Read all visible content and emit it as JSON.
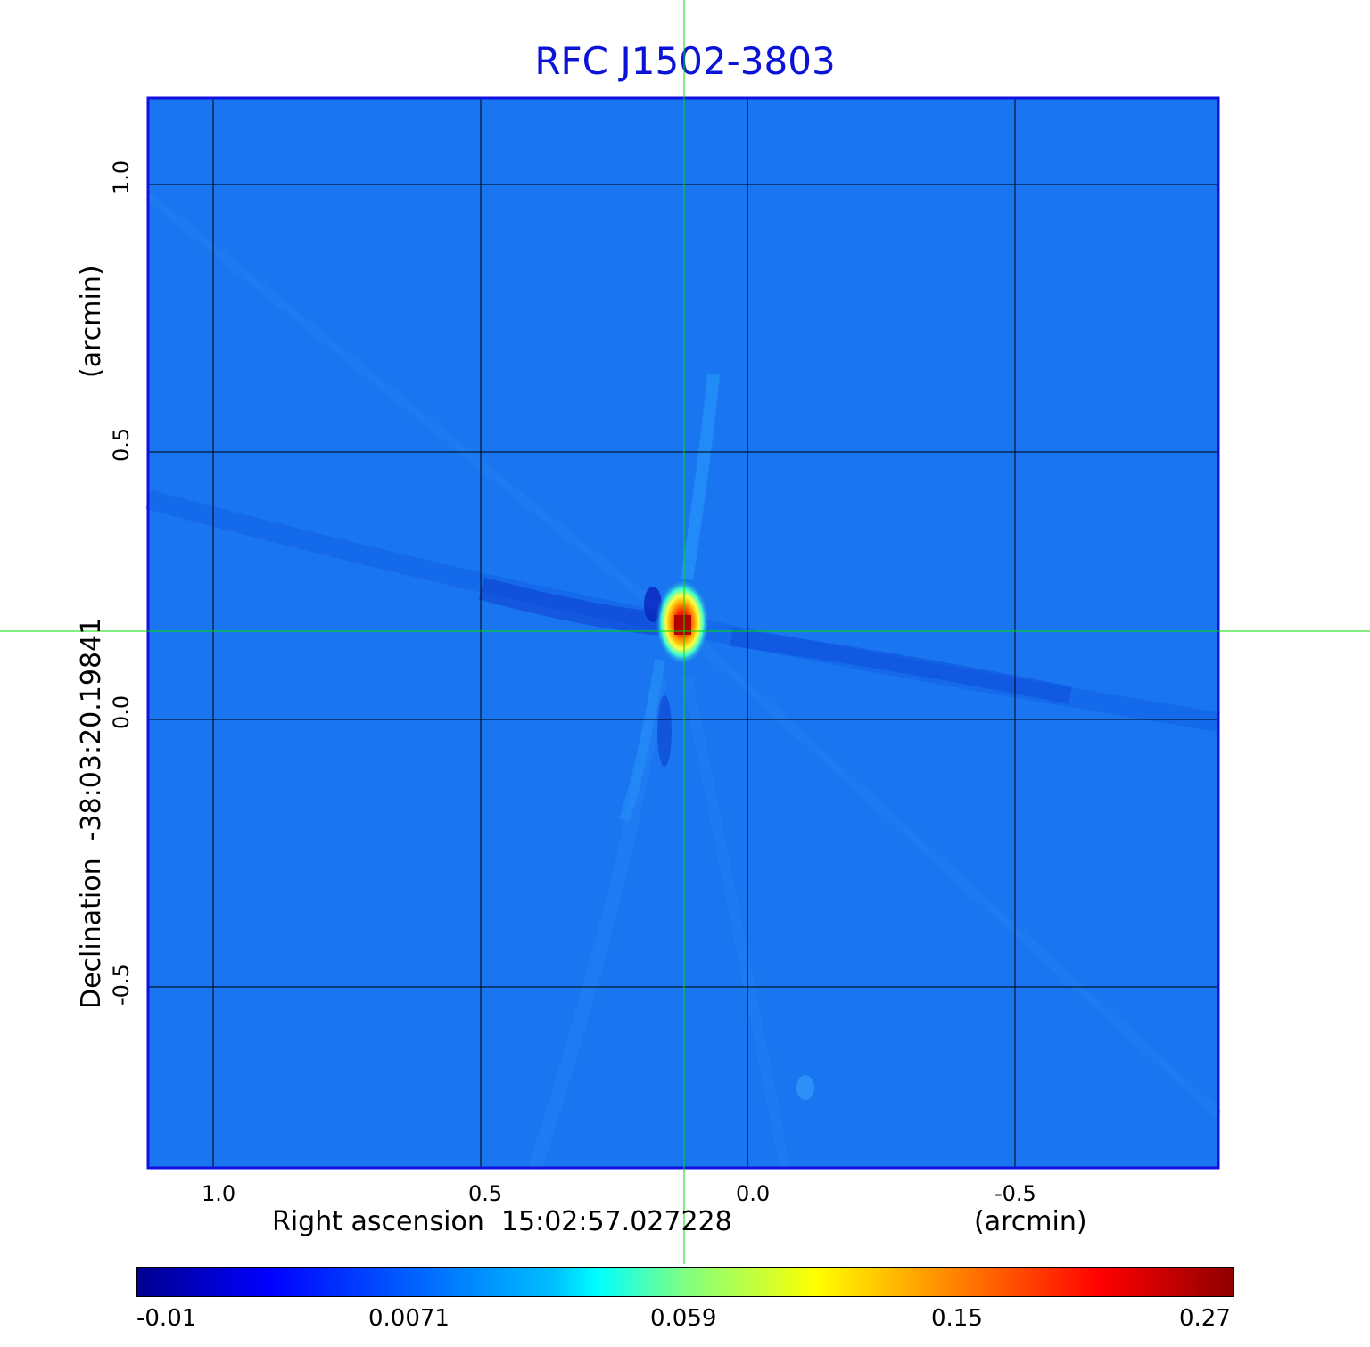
{
  "figure": {
    "title": "RFC J1502-3803",
    "x_axis_label": "Right ascension",
    "x_center": "15:02:57.027228",
    "x_unit": "(arcmin)",
    "y_axis_label": "Declination",
    "y_center": "-38:03:20.19841",
    "y_unit": "(arcmin)",
    "x_ticks": [
      "1.0",
      "0.5",
      "0.0",
      "-0.5"
    ],
    "y_ticks": [
      "1.0",
      "0.5",
      "0.0",
      "-0.5"
    ],
    "colorbar_ticks": [
      "-0.01",
      "0.0071",
      "0.059",
      "0.15",
      "0.27"
    ],
    "colors": {
      "title": "#0b13d6",
      "background_field": "#1a76f0",
      "crosshair": "#00dd00",
      "grid": "#000000"
    },
    "colormap": "jet"
  }
}
